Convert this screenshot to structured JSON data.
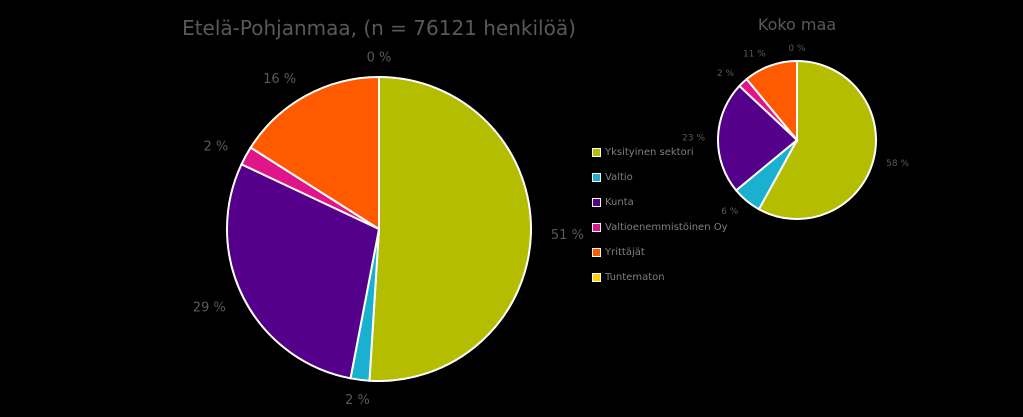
{
  "chart_data": [
    {
      "type": "pie",
      "title": "Etelä-Pohjanmaa, (n = 76121 henkilöä)",
      "categories": [
        "Yksityinen sektori",
        "Valtio",
        "Kunta",
        "Valtioenemmistöinen Oy",
        "Yrittäjät",
        "Tuntematon"
      ],
      "values": [
        51,
        2,
        29,
        2,
        16,
        0
      ],
      "labels": [
        "51 %",
        "2 %",
        "29 %",
        "2 %",
        "16 %",
        "0 %"
      ]
    },
    {
      "type": "pie",
      "title": "Koko maa",
      "categories": [
        "Yksityinen sektori",
        "Valtio",
        "Kunta",
        "Valtioenemmistöinen Oy",
        "Yrittäjät",
        "Tuntematon"
      ],
      "values": [
        58,
        6,
        23,
        2,
        11,
        0
      ],
      "labels": [
        "58 %",
        "6 %",
        "23 %",
        "2 %",
        "11 %",
        "0 %"
      ]
    }
  ],
  "legend": {
    "items": [
      {
        "label": "Yksityinen sektori",
        "color": "#b5bd00"
      },
      {
        "label": "Valtio",
        "color": "#1ab0cf"
      },
      {
        "label": "Kunta",
        "color": "#54008a"
      },
      {
        "label": "Valtioenemmistöinen Oy",
        "color": "#e0158a"
      },
      {
        "label": "Yrittäjät",
        "color": "#ff5a00"
      },
      {
        "label": "Tuntematon",
        "color": "#ffd000"
      }
    ]
  }
}
